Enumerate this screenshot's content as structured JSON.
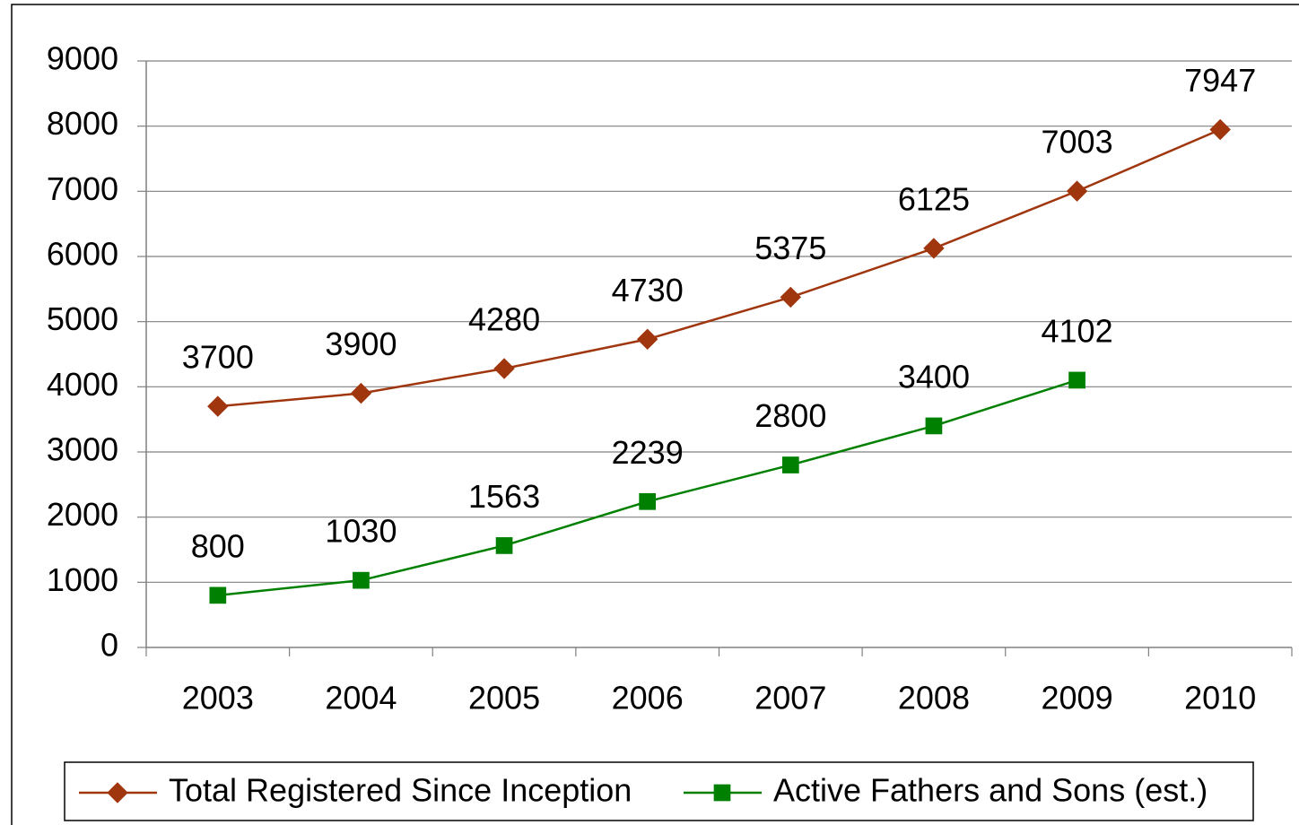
{
  "chart_data": {
    "type": "line",
    "categories": [
      "2003",
      "2004",
      "2005",
      "2006",
      "2007",
      "2008",
      "2009",
      "2010"
    ],
    "series": [
      {
        "name": "Total Registered Since Inception",
        "color": "#a0360e",
        "marker": "diamond",
        "values": [
          3700,
          3900,
          4280,
          4730,
          5375,
          6125,
          7003,
          7947
        ]
      },
      {
        "name": "Active Fathers and Sons (est.)",
        "color": "#008000",
        "marker": "square",
        "values": [
          800,
          1030,
          1563,
          2239,
          2800,
          3400,
          4102,
          null
        ]
      }
    ],
    "ylim": [
      0,
      9000
    ],
    "yticks": [
      0,
      1000,
      2000,
      3000,
      4000,
      5000,
      6000,
      7000,
      8000,
      9000
    ],
    "grid": true,
    "legend": "bottom"
  }
}
